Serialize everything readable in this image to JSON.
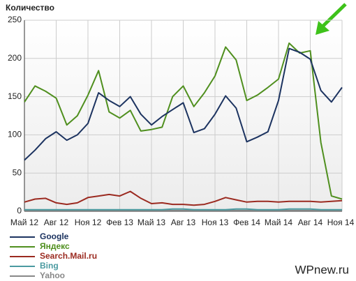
{
  "chart_data": {
    "type": "line",
    "y_label": "Количество",
    "categories": [
      "Май 12",
      null,
      null,
      "Авг 12",
      null,
      null,
      "Ноя 12",
      null,
      null,
      "Фев 13",
      null,
      null,
      "Май 13",
      null,
      null,
      "Авг 13",
      null,
      null,
      "Ноя 13",
      null,
      null,
      "Фев 14",
      null,
      null,
      "Май 14",
      null,
      null,
      "Авг 14",
      null,
      null,
      "Ноя 14"
    ],
    "series": [
      {
        "name": "Google",
        "color": "#1c3360",
        "values": [
          67,
          80,
          95,
          104,
          93,
          100,
          115,
          155,
          145,
          137,
          150,
          127,
          113,
          124,
          133,
          142,
          103,
          108,
          127,
          151,
          135,
          91,
          97,
          104,
          145,
          213,
          208,
          199,
          158,
          143,
          162
        ]
      },
      {
        "name": "Яндекс",
        "color": "#4f8f1e",
        "values": [
          143,
          164,
          157,
          148,
          113,
          125,
          152,
          184,
          130,
          122,
          132,
          105,
          107,
          110,
          150,
          164,
          137,
          155,
          177,
          215,
          198,
          145,
          152,
          162,
          173,
          220,
          207,
          210,
          90,
          20,
          16
        ]
      },
      {
        "name": "Search.Mail.ru",
        "color": "#9b2a20",
        "values": [
          12,
          16,
          17,
          11,
          9,
          11,
          18,
          20,
          22,
          20,
          26,
          17,
          10,
          11,
          9,
          9,
          8,
          9,
          13,
          18,
          15,
          12,
          13,
          13,
          12,
          13,
          13,
          13,
          12,
          13,
          14
        ]
      },
      {
        "name": "Bing",
        "color": "#4a9aa0",
        "values": [
          2,
          2,
          2,
          2,
          2,
          2,
          2,
          2,
          2,
          2,
          2,
          2,
          2,
          2,
          3,
          3,
          2,
          2,
          2,
          2,
          3,
          3,
          2,
          2,
          2,
          3,
          3,
          3,
          2,
          2,
          2
        ]
      },
      {
        "name": "Yahoo",
        "color": "#888888",
        "values": [
          1,
          1,
          1,
          1,
          1,
          1,
          1,
          1,
          1,
          1,
          1,
          1,
          1,
          1,
          1,
          1,
          1,
          1,
          1,
          1,
          1,
          1,
          1,
          1,
          1,
          1,
          1,
          1,
          1,
          1,
          1
        ]
      }
    ],
    "ylim": [
      0,
      250
    ],
    "yticks": [
      0,
      50,
      100,
      150,
      200,
      250
    ],
    "grid": true
  },
  "watermark": "WPnew.ru"
}
